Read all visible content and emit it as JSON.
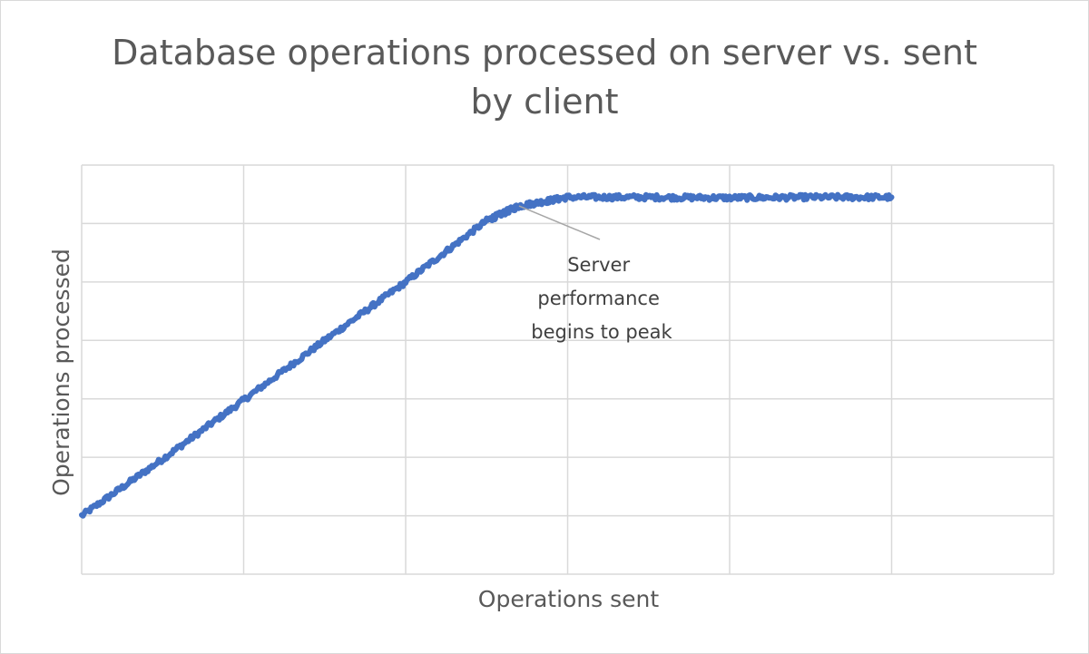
{
  "chart_data": {
    "type": "line",
    "title_lines": [
      "Database operations processed on server vs. sent",
      "by client"
    ],
    "xlabel": "Operations sent",
    "ylabel": "Operations processed",
    "x_tick_labels": false,
    "y_tick_labels": false,
    "xlim": [
      0,
      6
    ],
    "ylim": [
      0,
      7
    ],
    "grid": true,
    "legend": "none",
    "series": [
      {
        "color": "#4472c4",
        "x": [
          0,
          0.5,
          1,
          1.5,
          2,
          2.5,
          2.7,
          3,
          3.5,
          4,
          4.5,
          5
        ],
        "y": [
          1.0,
          1.97,
          2.98,
          4.0,
          5.0,
          6.05,
          6.3,
          6.45,
          6.45,
          6.44,
          6.45,
          6.45
        ]
      }
    ],
    "annotation": {
      "lines": [
        "Server",
        "performance",
        "begins to peak"
      ],
      "x": 2.7,
      "y": 6.3
    }
  }
}
